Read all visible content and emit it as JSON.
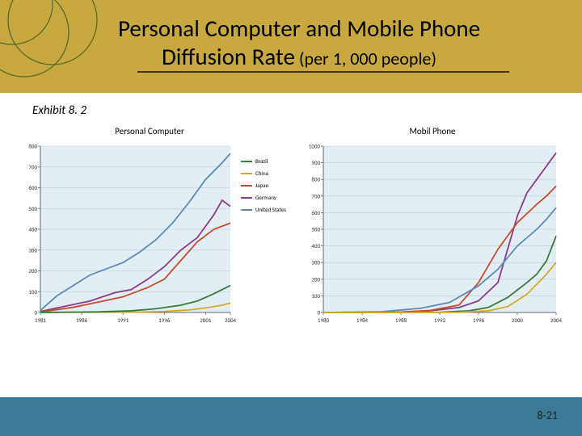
{
  "title_line1": "Personal Computer and Mobile Phone",
  "title_line2_strong": "Diffusion Rate",
  "title_line2_rest": " (per 1, 000 people)",
  "exhibit": "Exhibit 8. 2",
  "page_number": "8-21",
  "header_bg": "#c9a840",
  "footer_bg": "#3b7a94",
  "circle_stroke": "#4a6a2e",
  "chart_bg": "#e3eef4",
  "grid_color": "#b8c8d0",
  "axis_color": "#5a6a74",
  "tick_fontsize": 7,
  "legend_fontsize": 7,
  "series_colors": {
    "brazil": "#3a7a3a",
    "china": "#d6a82a",
    "japan": "#c84a2a",
    "germany": "#8a3a8a",
    "united_states": "#5a8ab8"
  },
  "legend_labels": {
    "brazil": "Brazil",
    "china": "China",
    "japan": "Japan",
    "germany": "Germany",
    "united_states": "United States"
  },
  "chart1": {
    "title": "Personal Computer",
    "x_ticks": [
      1981,
      1986,
      1991,
      1996,
      2001,
      2004
    ],
    "x_min": 1981,
    "x_max": 2004,
    "y_min": 0,
    "y_max": 800,
    "y_step": 100,
    "series": {
      "united_states": [
        [
          1981,
          10
        ],
        [
          1983,
          80
        ],
        [
          1985,
          130
        ],
        [
          1987,
          180
        ],
        [
          1989,
          210
        ],
        [
          1991,
          240
        ],
        [
          1993,
          290
        ],
        [
          1995,
          350
        ],
        [
          1997,
          430
        ],
        [
          1999,
          530
        ],
        [
          2001,
          640
        ],
        [
          2003,
          720
        ],
        [
          2004,
          765
        ]
      ],
      "germany": [
        [
          1981,
          5
        ],
        [
          1984,
          30
        ],
        [
          1987,
          55
        ],
        [
          1990,
          95
        ],
        [
          1992,
          110
        ],
        [
          1994,
          160
        ],
        [
          1996,
          220
        ],
        [
          1998,
          300
        ],
        [
          2000,
          360
        ],
        [
          2002,
          470
        ],
        [
          2003,
          540
        ],
        [
          2004,
          510
        ]
      ],
      "japan": [
        [
          1981,
          2
        ],
        [
          1985,
          25
        ],
        [
          1988,
          50
        ],
        [
          1991,
          75
        ],
        [
          1994,
          120
        ],
        [
          1996,
          160
        ],
        [
          1998,
          250
        ],
        [
          2000,
          340
        ],
        [
          2002,
          400
        ],
        [
          2004,
          430
        ]
      ],
      "china": [
        [
          1981,
          0
        ],
        [
          1988,
          1
        ],
        [
          1993,
          2
        ],
        [
          1996,
          5
        ],
        [
          1999,
          12
        ],
        [
          2001,
          22
        ],
        [
          2003,
          35
        ],
        [
          2004,
          45
        ]
      ],
      "brazil": [
        [
          1981,
          0
        ],
        [
          1988,
          3
        ],
        [
          1992,
          8
        ],
        [
          1995,
          18
        ],
        [
          1998,
          35
        ],
        [
          2000,
          55
        ],
        [
          2002,
          90
        ],
        [
          2004,
          130
        ]
      ]
    }
  },
  "chart2": {
    "title": "Mobil Phone",
    "x_ticks": [
      1980,
      1984,
      1988,
      1992,
      1996,
      2000,
      2004
    ],
    "x_min": 1980,
    "x_max": 2004,
    "y_min": 0,
    "y_max": 1000,
    "y_step": 100,
    "series": {
      "germany": [
        [
          1980,
          0
        ],
        [
          1988,
          2
        ],
        [
          1991,
          10
        ],
        [
          1994,
          30
        ],
        [
          1996,
          70
        ],
        [
          1998,
          180
        ],
        [
          2000,
          580
        ],
        [
          2001,
          720
        ],
        [
          2002,
          800
        ],
        [
          2003,
          880
        ],
        [
          2004,
          960
        ]
      ],
      "japan": [
        [
          1980,
          0
        ],
        [
          1988,
          3
        ],
        [
          1991,
          12
        ],
        [
          1994,
          45
        ],
        [
          1996,
          180
        ],
        [
          1998,
          380
        ],
        [
          2000,
          540
        ],
        [
          2002,
          650
        ],
        [
          2003,
          700
        ],
        [
          2004,
          760
        ]
      ],
      "united_states": [
        [
          1980,
          0
        ],
        [
          1986,
          5
        ],
        [
          1990,
          25
        ],
        [
          1993,
          60
        ],
        [
          1996,
          160
        ],
        [
          1998,
          260
        ],
        [
          2000,
          400
        ],
        [
          2002,
          500
        ],
        [
          2003,
          560
        ],
        [
          2004,
          630
        ]
      ],
      "brazil": [
        [
          1980,
          0
        ],
        [
          1992,
          1
        ],
        [
          1995,
          10
        ],
        [
          1997,
          30
        ],
        [
          1999,
          90
        ],
        [
          2001,
          180
        ],
        [
          2002,
          230
        ],
        [
          2003,
          310
        ],
        [
          2004,
          460
        ]
      ],
      "china": [
        [
          1980,
          0
        ],
        [
          1994,
          1
        ],
        [
          1997,
          10
        ],
        [
          1999,
          35
        ],
        [
          2001,
          110
        ],
        [
          2002,
          170
        ],
        [
          2003,
          230
        ],
        [
          2004,
          300
        ]
      ]
    }
  }
}
